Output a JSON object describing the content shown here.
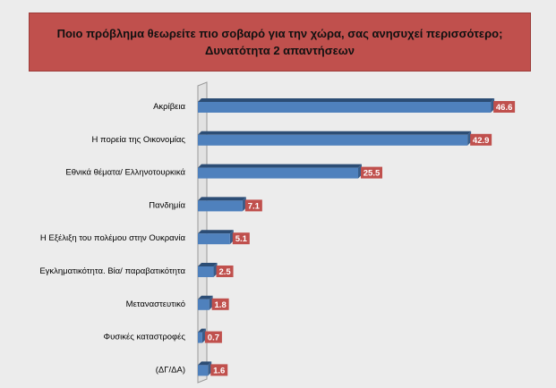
{
  "chart_data": {
    "type": "bar",
    "orientation": "horizontal",
    "title_lines": [
      "Ποιο πρόβλημα θεωρείτε πιο σοβαρό για την χώρα, σας ανησυχεί περισσότερο;",
      "Δυνατότητα 2 απαντήσεων"
    ],
    "categories": [
      "Ακρίβεια",
      "Η πορεία της Οικονομίας",
      "Εθνικά θέματα/ Ελληνοτουρκικά",
      "Πανδημία",
      "Η Εξέλιξη του πολέμου στην Ουκρανία",
      "Εγκληματικότητα. Βία/ παραβατικότητα",
      "Μεταναστευτικό",
      "Φυσικές καταστροφές",
      "(ΔΓ/ΔΑ)"
    ],
    "values": [
      46.6,
      42.9,
      25.5,
      7.1,
      5.1,
      2.5,
      1.8,
      0.7,
      1.6
    ],
    "value_labels": [
      "46.6",
      "42.9",
      "25.5",
      "7.1",
      "5.1",
      "2.5",
      "1.8",
      "0.7",
      "1.6"
    ],
    "xlim": [
      0,
      50
    ],
    "xlabel": "",
    "ylabel": "",
    "grid": false,
    "legend": "none",
    "colors": {
      "bar_front": "#4f81bd",
      "bar_top": "#2c4d75",
      "bar_end": "#385d8a",
      "label_box": "#c0504d",
      "title_box": "#c0504d",
      "background": "#ececec"
    }
  }
}
